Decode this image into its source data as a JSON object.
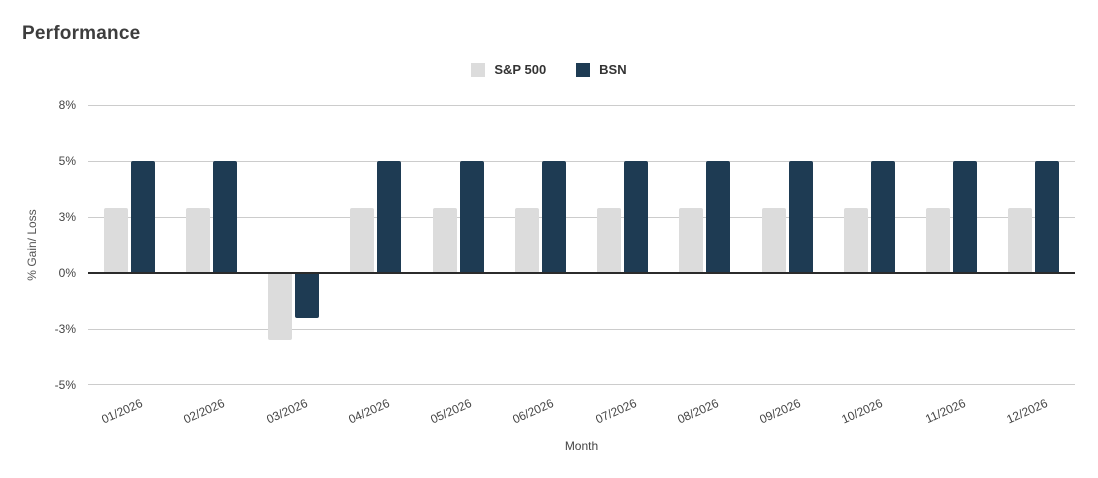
{
  "page": {
    "background": "#ffffff"
  },
  "header": {
    "title": "Performance"
  },
  "legend": {
    "items": [
      {
        "label": "S&P 500",
        "color": "#dcdcdc"
      },
      {
        "label": "BSN",
        "color": "#1e3b53"
      }
    ]
  },
  "chart_data": {
    "type": "bar",
    "title": "Performance",
    "xlabel": "Month",
    "ylabel": "% Gain/ Loss",
    "categories": [
      "01/2026",
      "02/2026",
      "03/2026",
      "04/2026",
      "05/2026",
      "06/2026",
      "07/2026",
      "08/2026",
      "09/2026",
      "10/2026",
      "11/2026",
      "12/2026"
    ],
    "series": [
      {
        "name": "S&P 500",
        "color": "#dcdcdc",
        "values": [
          2.9,
          2.9,
          -3.0,
          2.9,
          2.9,
          2.9,
          2.9,
          2.9,
          2.9,
          2.9,
          2.9,
          2.9
        ]
      },
      {
        "name": "BSN",
        "color": "#1e3b53",
        "values": [
          5.0,
          5.0,
          -2.0,
          5.0,
          5.0,
          5.0,
          5.0,
          5.0,
          5.0,
          5.0,
          5.0,
          5.0
        ]
      }
    ],
    "y_ticks": [
      {
        "label": "8%",
        "value": 7.5
      },
      {
        "label": "5%",
        "value": 5
      },
      {
        "label": "3%",
        "value": 2.5
      },
      {
        "label": "0%",
        "value": 0
      },
      {
        "label": "-3%",
        "value": -2.5
      },
      {
        "label": "-5%",
        "value": -5
      }
    ],
    "ylim": [
      -5,
      7.5
    ],
    "grid": true,
    "legend_position": "top-center",
    "colors": {
      "gridline": "#cccccc",
      "baseline": "#2b2b2b",
      "text": "#444444"
    }
  }
}
